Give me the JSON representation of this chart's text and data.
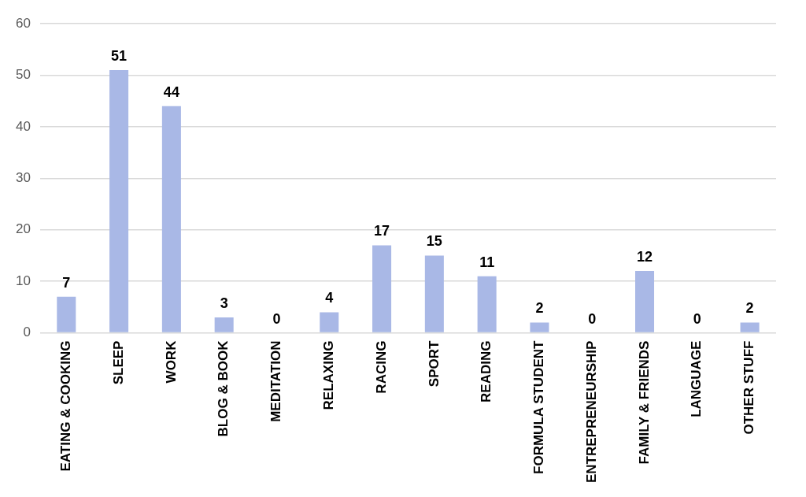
{
  "chart_data": {
    "type": "bar",
    "categories": [
      "EATING & COOKING",
      "SLEEP",
      "WORK",
      "BLOG & BOOK",
      "MEDITATION",
      "RELAXING",
      "RACING",
      "SPORT",
      "READING",
      "FORMULA STUDENT",
      "ENTREPRENEURSHIP",
      "FAMILY & FRIENDS",
      "LANGUAGE",
      "OTHER STUFF"
    ],
    "values": [
      7,
      51,
      44,
      3,
      0,
      4,
      17,
      15,
      11,
      2,
      0,
      12,
      0,
      2
    ],
    "color": "#a9b8e6",
    "ylim": [
      0,
      60
    ],
    "yticks": [
      0,
      10,
      20,
      30,
      40,
      50,
      60
    ],
    "grid": "y",
    "data_labels": true,
    "legend": false
  }
}
